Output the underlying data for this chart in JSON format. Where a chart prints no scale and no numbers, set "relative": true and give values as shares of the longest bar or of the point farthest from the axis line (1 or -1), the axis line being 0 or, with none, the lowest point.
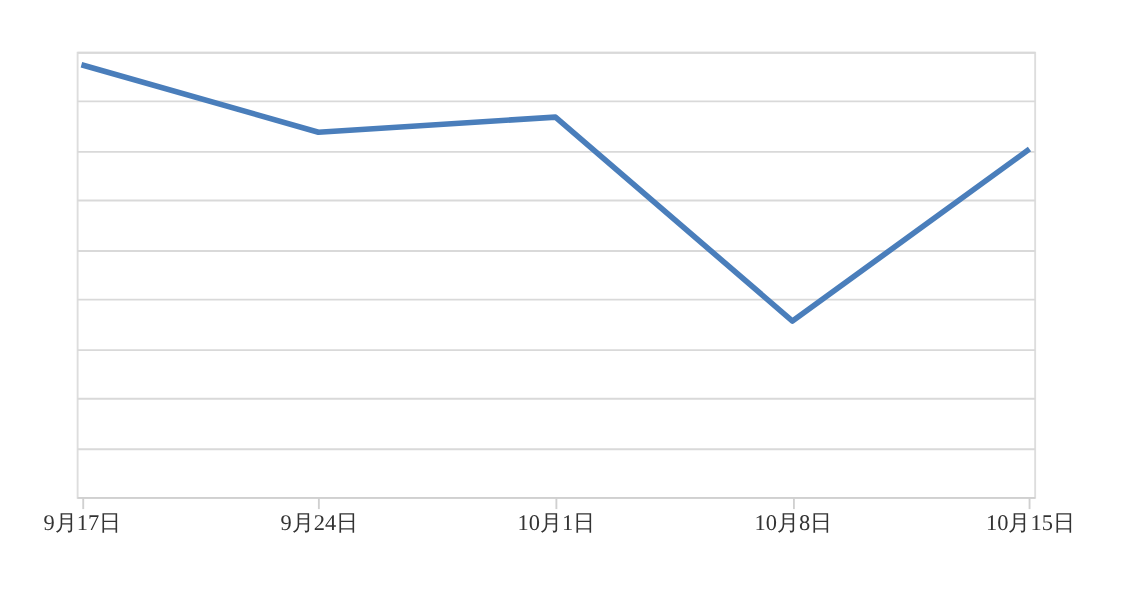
{
  "chart_data": {
    "type": "line",
    "relative": true,
    "grid": "y",
    "line_style": "solid",
    "marker": "none",
    "categories": [
      "9月17日",
      "9月24日",
      "10月1日",
      "10月8日",
      "10月15日"
    ],
    "series": [
      {
        "color": "#4a7ebb",
        "values": [
          1,
          0.844,
          0.879,
          0.407,
          0.805
        ]
      }
    ]
  }
}
